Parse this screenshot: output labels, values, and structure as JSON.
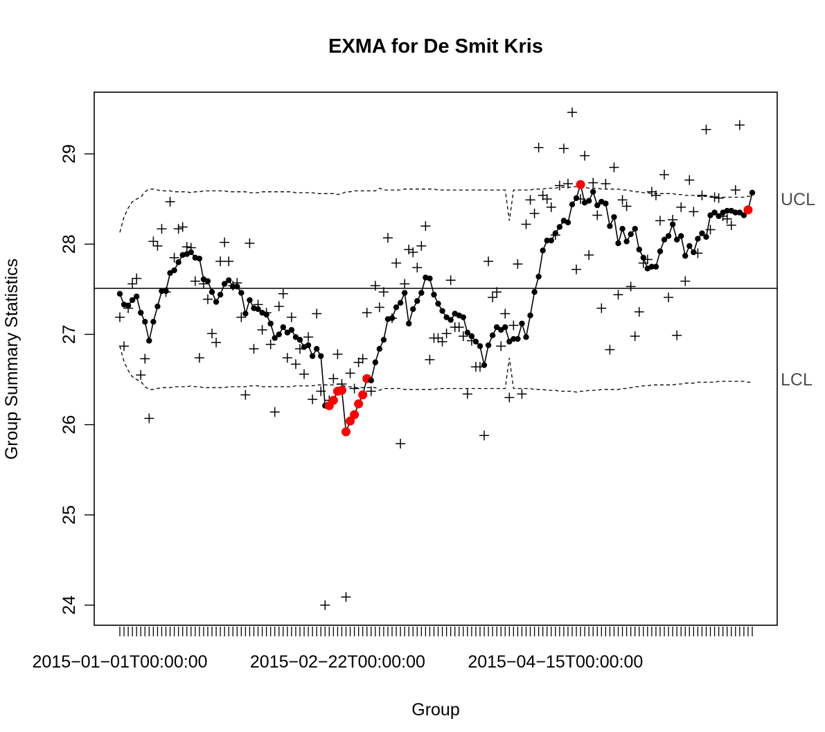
{
  "chart_data": {
    "type": "line",
    "title": "EXMA for De Smit Kris",
    "xlabel": "Group",
    "ylabel": "Group Summary Statistics",
    "y_ticks": [
      24,
      25,
      26,
      27,
      28,
      29
    ],
    "y_tick_labels": [
      "24",
      "25",
      "26",
      "27",
      "28",
      "29"
    ],
    "ylim": [
      23.8,
      29.7
    ],
    "x_tick_labels": [
      {
        "index": 1,
        "label": "2015−01−01T00:00:00"
      },
      {
        "index": 53,
        "label": "2015−02−22T00:00:00"
      },
      {
        "index": 105,
        "label": "2015−04−15T00:00:00"
      }
    ],
    "center_line": 27.51,
    "limit_labels": {
      "ucl": "UCL",
      "lcl": "LCL"
    },
    "ucl": [
      28.13,
      28.3,
      28.4,
      28.47,
      28.5,
      28.52,
      28.58,
      28.61,
      28.61,
      28.6,
      28.59,
      28.59,
      28.59,
      28.58,
      28.58,
      28.58,
      28.58,
      28.57,
      28.58,
      28.58,
      28.59,
      28.59,
      28.59,
      28.59,
      28.59,
      28.59,
      28.58,
      28.58,
      28.58,
      28.58,
      28.58,
      28.57,
      28.57,
      28.57,
      28.58,
      28.58,
      28.58,
      28.58,
      28.58,
      28.58,
      28.58,
      28.58,
      28.57,
      28.57,
      28.57,
      28.57,
      28.57,
      28.56,
      28.56,
      28.56,
      28.56,
      28.56,
      28.55,
      28.56,
      28.58,
      28.58,
      28.59,
      28.59,
      28.59,
      28.59,
      28.59,
      28.59,
      28.62,
      28.6,
      28.6,
      28.6,
      28.6,
      28.6,
      28.61,
      28.61,
      28.61,
      28.61,
      28.61,
      28.61,
      28.61,
      28.61,
      28.6,
      28.6,
      28.6,
      28.6,
      28.6,
      28.6,
      28.6,
      28.6,
      28.6,
      28.6,
      28.6,
      28.6,
      28.6,
      28.6,
      28.6,
      28.6,
      28.6,
      28.26,
      28.6,
      28.6,
      28.6,
      28.6,
      28.6,
      28.61,
      28.61,
      28.61,
      28.62,
      28.62,
      28.62,
      28.63,
      28.63,
      28.63,
      28.63,
      28.64,
      28.63,
      28.63,
      28.62,
      28.62,
      28.62,
      28.61,
      28.61,
      28.61,
      28.61,
      28.61,
      28.6,
      28.6,
      28.59,
      28.58,
      28.58,
      28.57,
      28.57,
      28.56,
      28.56,
      28.56,
      28.56,
      28.56,
      28.56,
      28.55,
      28.55,
      28.54,
      28.54,
      28.54,
      28.53,
      28.53,
      28.53,
      28.53,
      28.53,
      28.52,
      28.52,
      28.52,
      28.52,
      28.52,
      28.52,
      28.52,
      28.53,
      28.53
    ],
    "lcl": [
      26.87,
      26.7,
      26.6,
      26.53,
      26.5,
      26.48,
      26.42,
      26.39,
      26.39,
      26.4,
      26.41,
      26.41,
      26.41,
      26.42,
      26.42,
      26.42,
      26.42,
      26.43,
      26.42,
      26.42,
      26.41,
      26.41,
      26.41,
      26.41,
      26.41,
      26.41,
      26.42,
      26.42,
      26.42,
      26.42,
      26.42,
      26.43,
      26.43,
      26.43,
      26.42,
      26.42,
      26.42,
      26.42,
      26.42,
      26.42,
      26.42,
      26.42,
      26.43,
      26.43,
      26.43,
      26.43,
      26.43,
      26.44,
      26.44,
      26.44,
      26.44,
      26.44,
      26.45,
      26.44,
      26.42,
      26.42,
      26.41,
      26.41,
      26.41,
      26.41,
      26.41,
      26.41,
      26.38,
      26.4,
      26.4,
      26.4,
      26.4,
      26.4,
      26.39,
      26.39,
      26.39,
      26.39,
      26.39,
      26.39,
      26.39,
      26.39,
      26.4,
      26.4,
      26.4,
      26.4,
      26.4,
      26.4,
      26.4,
      26.4,
      26.4,
      26.4,
      26.4,
      26.4,
      26.4,
      26.4,
      26.4,
      26.4,
      26.4,
      26.74,
      26.4,
      26.4,
      26.4,
      26.4,
      26.4,
      26.39,
      26.39,
      26.39,
      26.38,
      26.38,
      26.38,
      26.37,
      26.37,
      26.37,
      26.37,
      26.36,
      26.37,
      26.37,
      26.38,
      26.38,
      26.38,
      26.39,
      26.39,
      26.39,
      26.39,
      26.39,
      26.4,
      26.4,
      26.41,
      26.42,
      26.42,
      26.43,
      26.43,
      26.44,
      26.44,
      26.44,
      26.44,
      26.44,
      26.44,
      26.45,
      26.45,
      26.46,
      26.46,
      26.46,
      26.47,
      26.47,
      26.47,
      26.47,
      26.47,
      26.48,
      26.48,
      26.48,
      26.48,
      26.48,
      26.48,
      26.48,
      26.47,
      26.47
    ],
    "summary_statistics": [
      27.45,
      27.33,
      27.32,
      27.38,
      27.42,
      27.24,
      27.14,
      26.93,
      27.14,
      27.31,
      27.48,
      27.48,
      27.68,
      27.71,
      27.8,
      27.88,
      27.89,
      27.91,
      27.85,
      27.84,
      27.61,
      27.59,
      27.47,
      27.36,
      27.44,
      27.56,
      27.6,
      27.53,
      27.53,
      27.46,
      27.23,
      27.38,
      27.29,
      27.28,
      27.24,
      27.22,
      27.12,
      26.96,
      27.0,
      27.08,
      27.02,
      27.05,
      26.97,
      26.94,
      26.86,
      26.88,
      26.76,
      26.84,
      26.76,
      26.21,
      26.21,
      26.27,
      26.37,
      26.38,
      25.92,
      26.04,
      26.11,
      26.23,
      26.33,
      26.51,
      26.49,
      26.69,
      26.84,
      26.94,
      27.17,
      27.18,
      27.3,
      27.35,
      27.46,
      27.12,
      27.28,
      27.37,
      27.46,
      27.63,
      27.62,
      27.44,
      27.34,
      27.26,
      27.19,
      27.16,
      27.23,
      27.21,
      27.19,
      27.02,
      26.98,
      26.92,
      26.87,
      26.66,
      26.88,
      26.99,
      27.08,
      27.05,
      27.08,
      26.92,
      26.95,
      26.95,
      27.12,
      26.97,
      27.21,
      27.47,
      27.64,
      27.93,
      28.04,
      28.04,
      28.12,
      28.19,
      28.26,
      28.24,
      28.44,
      28.51,
      28.66,
      28.46,
      28.48,
      28.58,
      28.43,
      28.47,
      28.45,
      28.2,
      28.3,
      28.01,
      28.17,
      28.03,
      28.11,
      28.17,
      27.94,
      27.85,
      27.73,
      27.75,
      27.75,
      27.92,
      28.05,
      28.09,
      28.22,
      28.05,
      28.09,
      27.87,
      27.98,
      27.91,
      28.06,
      28.12,
      28.08,
      28.32,
      28.35,
      28.31,
      28.35,
      28.37,
      28.37,
      28.35,
      28.35,
      28.32,
      28.38,
      28.57
    ],
    "observations": [
      27.19,
      26.87,
      27.29,
      27.56,
      27.62,
      26.55,
      26.73,
      26.07,
      28.03,
      27.98,
      28.17,
      27.47,
      28.47,
      27.85,
      28.17,
      28.19,
      27.97,
      27.96,
      27.59,
      26.74,
      27.56,
      27.39,
      27.01,
      26.91,
      27.81,
      28.02,
      27.81,
      27.54,
      27.57,
      27.19,
      26.33,
      28.01,
      26.84,
      27.33,
      27.05,
      27.24,
      26.89,
      26.14,
      27.31,
      27.45,
      26.74,
      27.19,
      26.67,
      26.84,
      26.56,
      26.97,
      26.28,
      27.23,
      26.37,
      24.0,
      26.27,
      26.51,
      26.78,
      26.45,
      24.09,
      26.57,
      26.4,
      26.69,
      26.73,
      27.24,
      26.37,
      27.54,
      27.3,
      27.47,
      28.07,
      27.18,
      27.79,
      25.79,
      27.56,
      27.94,
      27.91,
      27.74,
      27.98,
      28.2,
      26.72,
      26.96,
      26.96,
      26.92,
      27.01,
      27.6,
      27.08,
      27.08,
      26.98,
      26.34,
      26.93,
      26.64,
      26.64,
      25.88,
      27.81,
      27.41,
      27.47,
      26.87,
      27.23,
      26.3,
      27.1,
      27.78,
      26.34,
      28.22,
      28.49,
      28.34,
      29.07,
      28.54,
      28.5,
      28.41,
      28.1,
      28.65,
      29.06,
      28.67,
      29.46,
      27.72,
      28.5,
      28.98,
      27.88,
      28.68,
      28.32,
      27.29,
      28.67,
      26.83,
      28.85,
      27.44,
      28.49,
      28.42,
      27.53,
      26.98,
      27.25,
      27.79,
      27.83,
      28.58,
      28.54,
      28.26,
      28.77,
      27.41,
      28.27,
      26.99,
      28.41,
      27.59,
      28.71,
      28.36,
      27.9,
      28.54,
      29.27,
      28.16,
      28.52,
      28.51,
      28.31,
      28.28,
      28.21,
      28.6,
      29.32
    ],
    "violation_indices": [
      50,
      51,
      52,
      53,
      54,
      55,
      56,
      57,
      58,
      59,
      110,
      150
    ],
    "colors": {
      "line": "#000000",
      "violation": "#ff0000",
      "limits": "#000000",
      "limit_label": "#4d4d4d"
    }
  }
}
